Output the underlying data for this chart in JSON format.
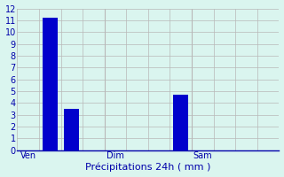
{
  "n_slots": 12,
  "bar_positions": [
    1,
    2,
    7
  ],
  "bar_values": [
    11.2,
    3.5,
    4.7
  ],
  "bar_color": "#0000cc",
  "bar_width": 0.7,
  "xlabel": "Précipitations 24h ( mm )",
  "ylim": [
    0,
    12
  ],
  "yticks": [
    0,
    1,
    2,
    3,
    4,
    5,
    6,
    7,
    8,
    9,
    10,
    11,
    12
  ],
  "xtick_positions": [
    0,
    4,
    8
  ],
  "xtick_labels": [
    "Ven",
    "Dim",
    "Sam"
  ],
  "background_color": "#daf5ef",
  "grid_color": "#b8b8b8",
  "grid_color_major": "#0000aa",
  "axis_color": "#0000aa",
  "label_color": "#0000aa",
  "tick_color": "#0000aa",
  "xlabel_fontsize": 8,
  "ytick_fontsize": 7,
  "xtick_fontsize": 7
}
